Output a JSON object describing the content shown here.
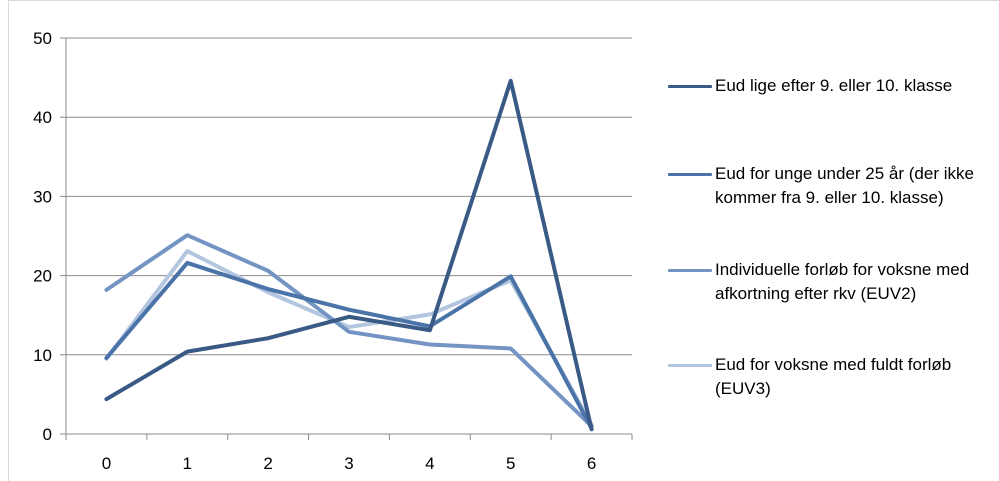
{
  "chart_data": {
    "type": "line",
    "title": "",
    "xlabel": "",
    "ylabel": "",
    "categories": [
      "0",
      "1",
      "2",
      "3",
      "4",
      "5",
      "6"
    ],
    "ylim": [
      0,
      50
    ],
    "yticks": [
      0,
      10,
      20,
      30,
      40,
      50
    ],
    "grid": "horizontal",
    "legend_position": "right",
    "series": [
      {
        "name": "Eud lige efter 9. eller 10. klasse",
        "color": "#3a5a86",
        "values": [
          4.4,
          10.4,
          12.1,
          14.8,
          13.1,
          44.6,
          0.6
        ]
      },
      {
        "name": "Eud for unge under 25 år (der ikke kommer fra 9. eller 10. klasse)",
        "color": "#4a73a8",
        "values": [
          9.6,
          21.6,
          18.3,
          15.7,
          13.6,
          19.9,
          0.7
        ]
      },
      {
        "name": "Individuelle forløb for voksne med afkortning efter rkv (EUV2)",
        "color": "#7494c3",
        "values": [
          18.2,
          25.1,
          20.6,
          12.9,
          11.3,
          10.8,
          1.0
        ]
      },
      {
        "name": "Eud for voksne med fuldt forløb (EUV3)",
        "color": "#b3c5df",
        "values": [
          9.5,
          23.1,
          17.9,
          13.5,
          15.1,
          19.4,
          1.2
        ]
      }
    ]
  }
}
